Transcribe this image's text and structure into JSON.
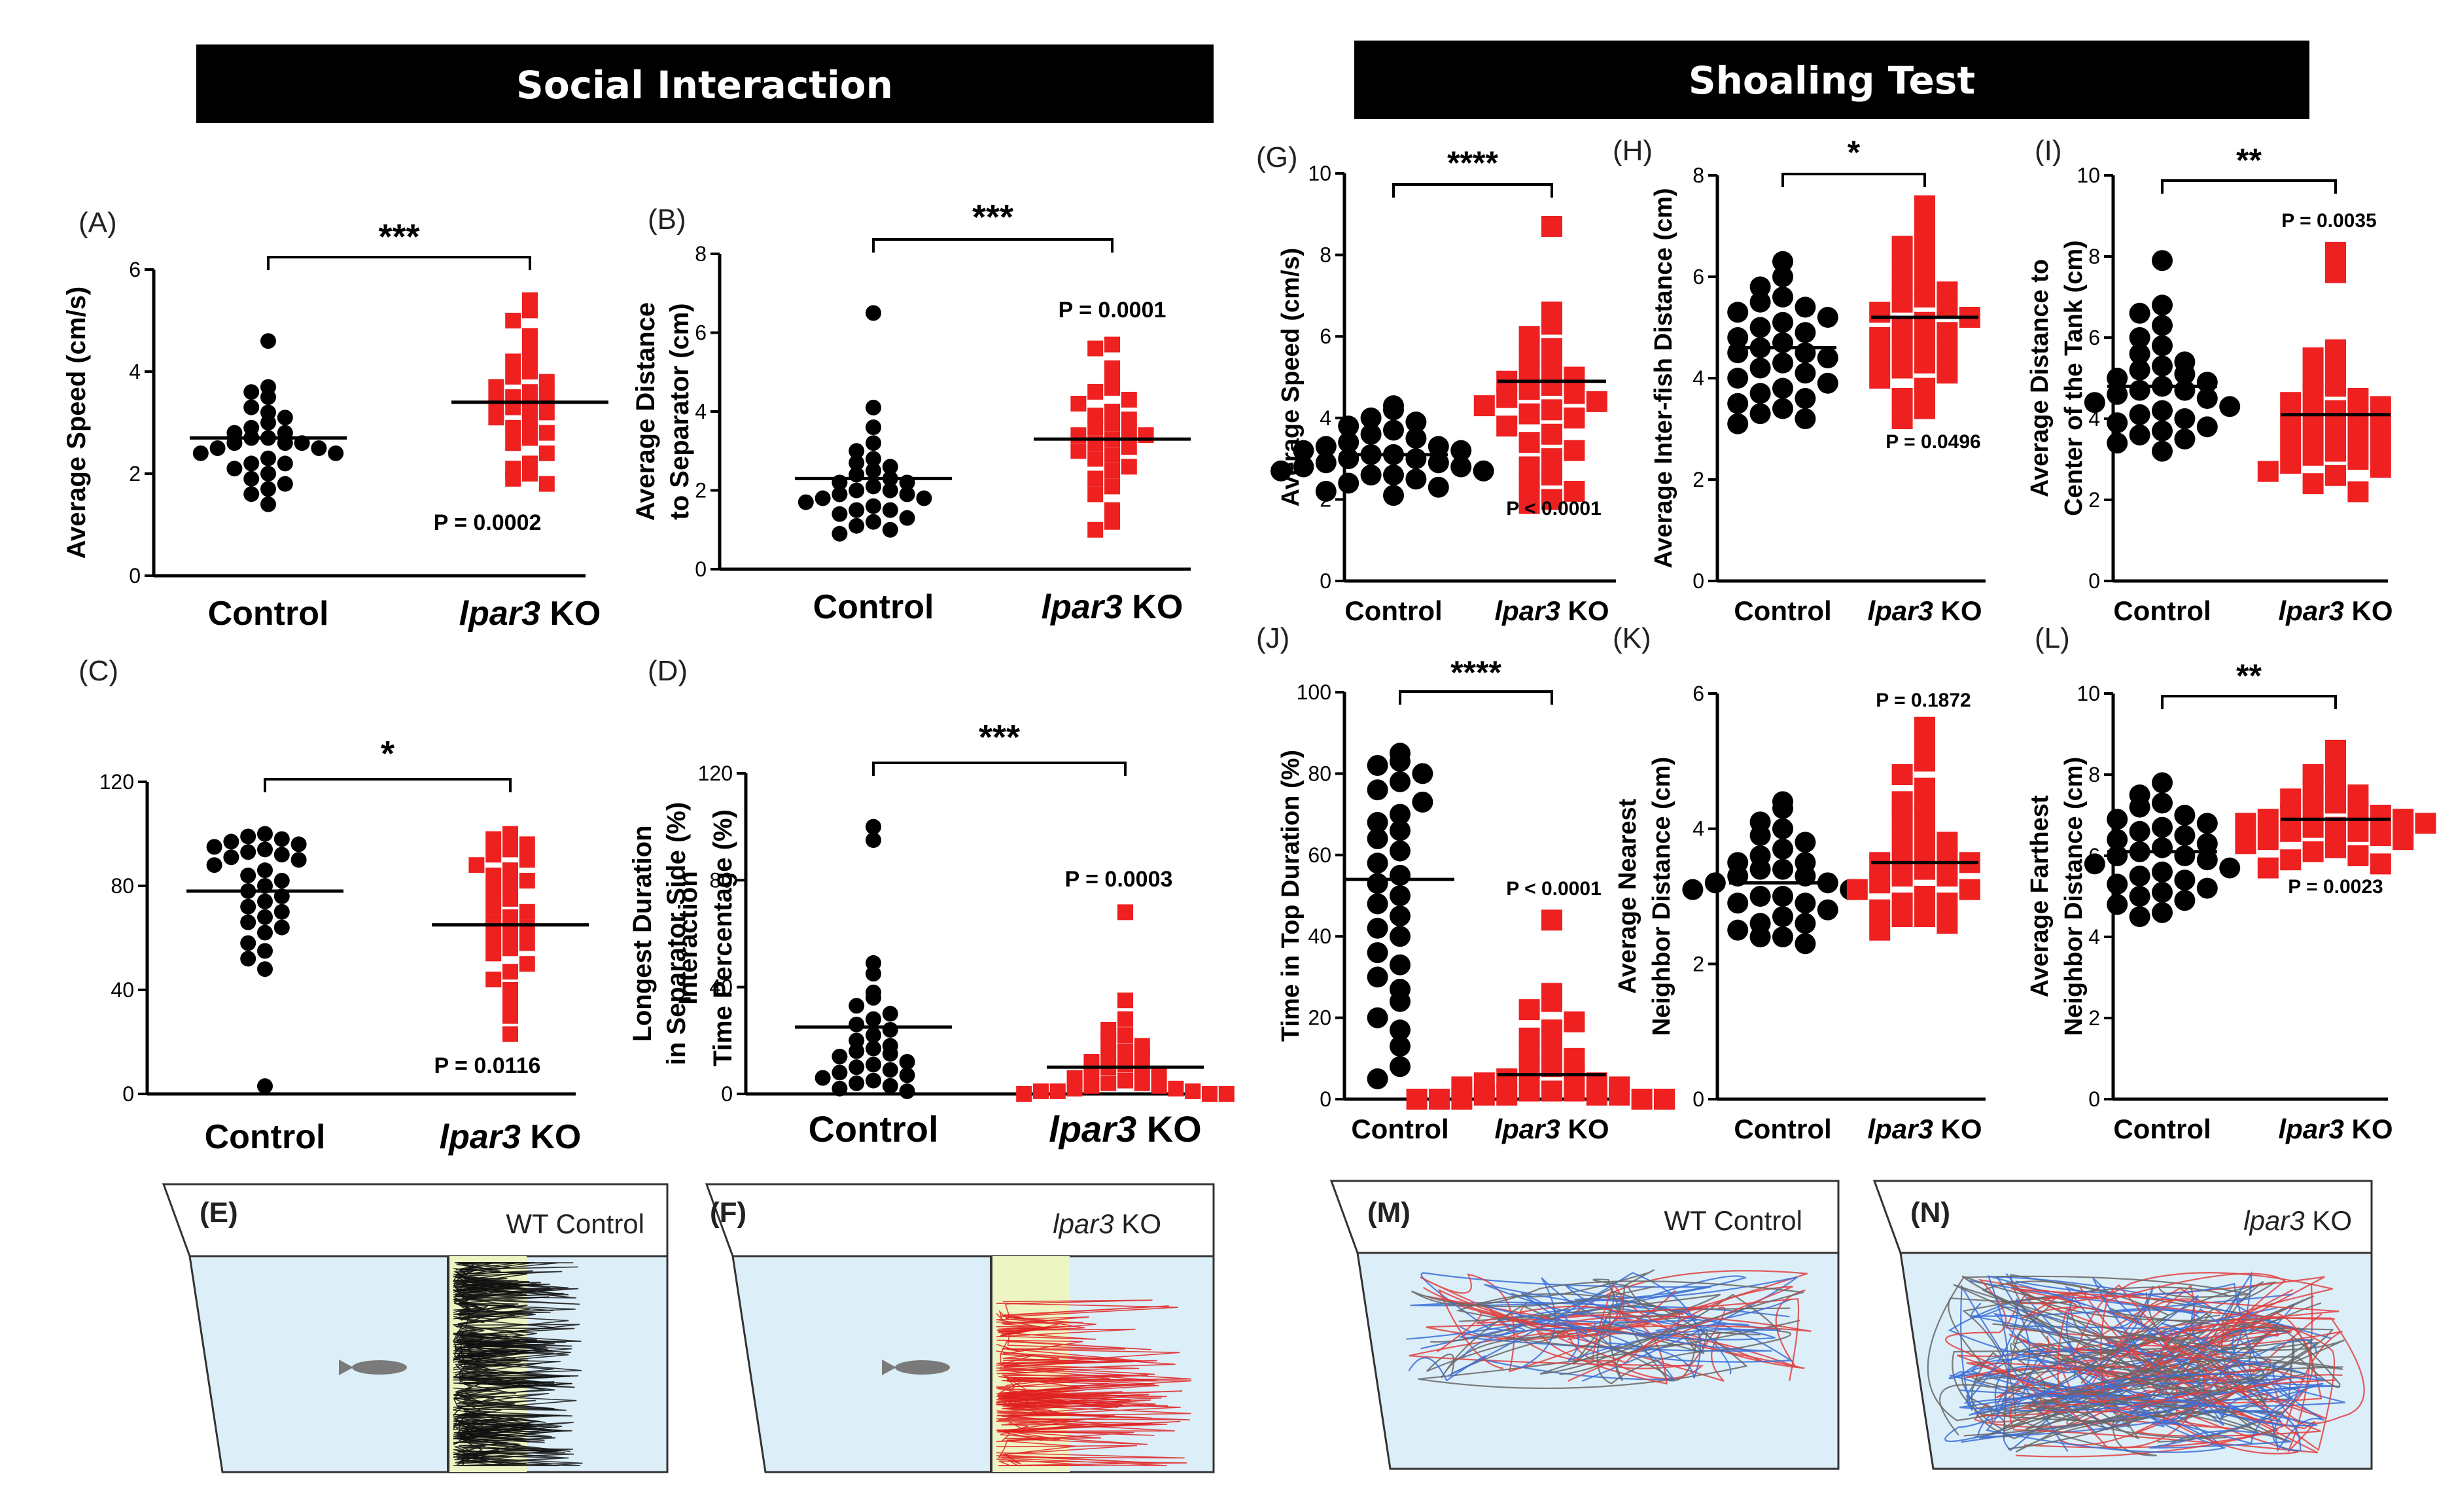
{
  "headers": {
    "left": "Social Interaction",
    "right": "Shoaling Test"
  },
  "colors": {
    "control": "#000000",
    "ko": "#ee2020",
    "water": "#dceef8",
    "zone": "#eef5c4",
    "header_bg": "#000000"
  },
  "chart_data": [
    {
      "id": "A",
      "type": "scatter",
      "tag": "(A)",
      "ylabel_lines": [
        "Average Speed (cm/s)"
      ],
      "ylim": [
        0,
        6
      ],
      "yticks": [
        "0",
        "2",
        "4",
        "6"
      ],
      "categories": [
        "Control",
        "Ipar3 KO"
      ],
      "ko_label": {
        "italic": "lpar3",
        "rest": " KO"
      },
      "significance": "***",
      "p_value": "P = 0.0002",
      "means": [
        2.7,
        3.4
      ],
      "series": [
        {
          "name": "Control",
          "values": [
            4.6,
            3.7,
            3.5,
            3.6,
            3.2,
            3.3,
            3.1,
            3.0,
            2.9,
            2.8,
            2.8,
            2.7,
            2.7,
            2.6,
            2.6,
            2.6,
            2.5,
            2.5,
            2.4,
            2.4,
            2.3,
            2.2,
            2.2,
            2.1,
            2.0,
            1.9,
            1.8,
            1.7,
            1.6,
            1.4
          ]
        },
        {
          "name": "Ipar3 KO",
          "values": [
            5.4,
            5.2,
            5.0,
            4.7,
            4.5,
            4.3,
            4.2,
            4.0,
            3.9,
            3.8,
            3.7,
            3.6,
            3.5,
            3.5,
            3.4,
            3.3,
            3.3,
            3.2,
            3.1,
            3.0,
            2.9,
            2.8,
            2.7,
            2.6,
            2.4,
            2.2,
            2.1,
            2.0,
            1.9,
            1.8
          ]
        }
      ]
    },
    {
      "id": "B",
      "type": "scatter",
      "tag": "(B)",
      "ylabel_lines": [
        "Average Distance",
        "to Separator (cm)"
      ],
      "ylim": [
        0,
        8
      ],
      "yticks": [
        "0",
        "2",
        "4",
        "6",
        "8"
      ],
      "categories": [
        "Control",
        "Ipar3 KO"
      ],
      "ko_label": {
        "italic": "lpar3",
        "rest": " KO"
      },
      "significance": "***",
      "p_value": "P = 0.0001",
      "means": [
        2.3,
        3.3
      ],
      "series": [
        {
          "name": "Control",
          "values": [
            6.5,
            4.1,
            3.6,
            3.2,
            3.0,
            2.8,
            2.7,
            2.6,
            2.5,
            2.4,
            2.3,
            2.2,
            2.2,
            2.1,
            2.0,
            2.0,
            1.9,
            1.9,
            1.8,
            1.8,
            1.7,
            1.6,
            1.5,
            1.5,
            1.4,
            1.3,
            1.2,
            1.1,
            1.0,
            0.9
          ]
        },
        {
          "name": "Ipar3 KO",
          "values": [
            5.7,
            5.6,
            5.1,
            4.9,
            4.6,
            4.5,
            4.3,
            4.2,
            4.0,
            3.9,
            3.8,
            3.7,
            3.6,
            3.5,
            3.4,
            3.4,
            3.3,
            3.2,
            3.1,
            3.0,
            2.9,
            2.8,
            2.6,
            2.5,
            2.3,
            2.1,
            1.9,
            1.5,
            1.2,
            1.0
          ]
        }
      ]
    },
    {
      "id": "C",
      "type": "scatter",
      "tag": "(C)",
      "ylabel_lines": [
        "Interaction",
        "Time Percentage (%)"
      ],
      "ylim": [
        0,
        120
      ],
      "yticks": [
        "0",
        "40",
        "80",
        "120"
      ],
      "categories": [
        "Control",
        "Ipar3 KO"
      ],
      "ko_label": {
        "italic": "lpar3",
        "rest": " KO"
      },
      "significance": "*",
      "p_value": "P = 0.0116",
      "means": [
        78,
        65
      ],
      "series": [
        {
          "name": "Control",
          "values": [
            100,
            99,
            98,
            97,
            96,
            95,
            94,
            93,
            92,
            91,
            90,
            88,
            86,
            84,
            82,
            80,
            78,
            76,
            74,
            72,
            70,
            68,
            66,
            64,
            62,
            58,
            55,
            52,
            48,
            3
          ]
        },
        {
          "name": "Ipar3 KO",
          "values": [
            100,
            98,
            96,
            94,
            92,
            90,
            88,
            86,
            84,
            82,
            80,
            78,
            75,
            72,
            70,
            68,
            66,
            64,
            62,
            60,
            58,
            56,
            54,
            50,
            47,
            44,
            40,
            36,
            30,
            23
          ]
        }
      ]
    },
    {
      "id": "D",
      "type": "scatter",
      "tag": "(D)",
      "ylabel_lines": [
        "Longest  Duration",
        "in Separator Side (%)"
      ],
      "ylim": [
        0,
        120
      ],
      "yticks": [
        "0",
        "40",
        "80",
        "120"
      ],
      "categories": [
        "Control",
        "Ipar3 KO"
      ],
      "ko_label": {
        "italic": "lpar3",
        "rest": " KO"
      },
      "significance": "***",
      "p_value": "P = 0.0003",
      "means": [
        25,
        10
      ],
      "series": [
        {
          "name": "Control",
          "values": [
            100,
            95,
            49,
            45,
            38,
            36,
            33,
            30,
            28,
            26,
            24,
            22,
            20,
            18,
            17,
            16,
            15,
            14,
            12,
            11,
            10,
            9,
            8,
            7,
            6,
            5,
            4,
            3,
            2,
            1
          ]
        },
        {
          "name": "Ipar3 KO",
          "values": [
            68,
            35,
            28,
            24,
            22,
            20,
            18,
            16,
            15,
            14,
            12,
            11,
            10,
            9,
            8,
            7,
            6,
            5,
            4,
            4,
            3,
            3,
            2,
            2,
            1,
            1,
            1,
            0,
            0,
            0
          ]
        }
      ]
    },
    {
      "id": "G",
      "type": "scatter",
      "tag": "(G)",
      "ylabel_lines": [
        "Average Speed (cm/s)"
      ],
      "ylim": [
        0,
        10
      ],
      "yticks": [
        "0",
        "2",
        "4",
        "6",
        "8",
        "10"
      ],
      "categories": [
        "Control",
        "Ipar3 KO"
      ],
      "ko_label": {
        "italic": "lpar3",
        "rest": " KO"
      },
      "significance": "****",
      "p_value": "P < 0.0001",
      "means": [
        3.1,
        4.9
      ],
      "series": [
        {
          "name": "Control",
          "values": [
            4.3,
            4.2,
            4.0,
            3.9,
            3.8,
            3.7,
            3.6,
            3.5,
            3.4,
            3.3,
            3.3,
            3.2,
            3.2,
            3.1,
            3.1,
            3.0,
            3.0,
            2.9,
            2.9,
            2.8,
            2.8,
            2.7,
            2.7,
            2.6,
            2.6,
            2.5,
            2.4,
            2.3,
            2.2,
            2.1
          ]
        },
        {
          "name": "Ipar3 KO",
          "values": [
            8.7,
            6.6,
            6.3,
            6.0,
            5.7,
            5.5,
            5.3,
            5.1,
            5.0,
            4.9,
            4.8,
            4.7,
            4.6,
            4.5,
            4.4,
            4.3,
            4.2,
            4.1,
            4.0,
            3.8,
            3.6,
            3.4,
            3.2,
            3.0,
            2.8,
            2.6,
            2.4,
            2.2,
            2.0,
            1.9
          ]
        }
      ]
    },
    {
      "id": "H",
      "type": "scatter",
      "tag": "(H)",
      "ylabel_lines": [
        "Average Inter-fish Distance (cm)"
      ],
      "ylim": [
        0,
        8
      ],
      "yticks": [
        "0",
        "2",
        "4",
        "6",
        "8"
      ],
      "categories": [
        "Control",
        "Ipar3 KO"
      ],
      "ko_label": {
        "italic": "lpar3",
        "rest": " KO"
      },
      "significance": "*",
      "p_value": "P = 0.0496",
      "means": [
        4.6,
        5.2
      ],
      "series": [
        {
          "name": "Control",
          "values": [
            6.3,
            6.0,
            5.8,
            5.6,
            5.5,
            5.4,
            5.3,
            5.2,
            5.1,
            5.0,
            4.9,
            4.8,
            4.7,
            4.6,
            4.5,
            4.5,
            4.4,
            4.3,
            4.2,
            4.1,
            4.0,
            3.9,
            3.8,
            3.7,
            3.6,
            3.5,
            3.4,
            3.3,
            3.2,
            3.1
          ]
        },
        {
          "name": "Ipar3 KO",
          "values": [
            7.4,
            7.1,
            6.8,
            6.6,
            6.4,
            6.2,
            6.0,
            5.8,
            5.7,
            5.6,
            5.5,
            5.4,
            5.3,
            5.2,
            5.1,
            5.0,
            4.9,
            4.8,
            4.7,
            4.6,
            4.5,
            4.4,
            4.3,
            4.2,
            4.1,
            4.0,
            3.8,
            3.6,
            3.4,
            3.2
          ]
        }
      ]
    },
    {
      "id": "I",
      "type": "scatter",
      "tag": "(I)",
      "ylabel_lines": [
        "Average Distance to",
        "Center of the Tank (cm)"
      ],
      "ylim": [
        0,
        10
      ],
      "yticks": [
        "0",
        "2",
        "4",
        "6",
        "8",
        "10"
      ],
      "categories": [
        "Control",
        "Ipar3 KO"
      ],
      "ko_label": {
        "italic": "lpar3",
        "rest": " KO"
      },
      "significance": "**",
      "p_value": "P = 0.0035",
      "means": [
        4.8,
        4.1
      ],
      "series": [
        {
          "name": "Control",
          "values": [
            7.9,
            6.8,
            6.6,
            6.3,
            6.0,
            5.8,
            5.6,
            5.4,
            5.3,
            5.2,
            5.1,
            5.0,
            4.9,
            4.8,
            4.7,
            4.7,
            4.6,
            4.5,
            4.4,
            4.3,
            4.2,
            4.1,
            4.0,
            3.9,
            3.8,
            3.7,
            3.6,
            3.5,
            3.4,
            3.2
          ]
        },
        {
          "name": "Ipar3 KO",
          "values": [
            8.1,
            7.6,
            5.7,
            5.5,
            5.3,
            5.0,
            4.8,
            4.6,
            4.5,
            4.4,
            4.3,
            4.2,
            4.1,
            4.0,
            3.9,
            3.8,
            3.7,
            3.6,
            3.5,
            3.4,
            3.3,
            3.2,
            3.1,
            3.0,
            2.9,
            2.8,
            2.7,
            2.6,
            2.4,
            2.2
          ]
        }
      ]
    },
    {
      "id": "J",
      "type": "scatter",
      "tag": "(J)",
      "ylabel_lines": [
        "Time in Top Duration (%)"
      ],
      "ylim": [
        0,
        100
      ],
      "yticks": [
        "0",
        "20",
        "40",
        "60",
        "80",
        "100"
      ],
      "categories": [
        "Control",
        "Ipar3 KO"
      ],
      "ko_label": {
        "italic": "lpar3",
        "rest": " KO"
      },
      "significance": "****",
      "p_value": "P < 0.0001",
      "means": [
        54,
        6
      ],
      "series": [
        {
          "name": "Control",
          "values": [
            85,
            83,
            82,
            80,
            78,
            76,
            73,
            70,
            68,
            66,
            64,
            61,
            58,
            55,
            53,
            50,
            48,
            45,
            42,
            40,
            36,
            33,
            30,
            27,
            24,
            20,
            17,
            13,
            8,
            5
          ]
        },
        {
          "name": "Ipar3 KO",
          "values": [
            44,
            26,
            24,
            22,
            19,
            17,
            15,
            13,
            11,
            10,
            8,
            7,
            6,
            5,
            4,
            4,
            3,
            3,
            2,
            2,
            2,
            1,
            1,
            1,
            1,
            0,
            0,
            0,
            0,
            0
          ]
        }
      ]
    },
    {
      "id": "K",
      "type": "scatter",
      "tag": "(K)",
      "ylabel_lines": [
        "Average Nearest",
        "Neighbor Distance (cm)"
      ],
      "ylim": [
        0,
        6
      ],
      "yticks": [
        "0",
        "2",
        "4",
        "6"
      ],
      "categories": [
        "Control",
        "Ipar3 KO"
      ],
      "ko_label": {
        "italic": "lpar3",
        "rest": " KO"
      },
      "significance": "",
      "p_value": "P = 0.1872",
      "means": [
        3.2,
        3.5
      ],
      "series": [
        {
          "name": "Control",
          "values": [
            4.4,
            4.3,
            4.1,
            4.0,
            3.9,
            3.8,
            3.7,
            3.6,
            3.5,
            3.5,
            3.4,
            3.4,
            3.3,
            3.3,
            3.2,
            3.2,
            3.1,
            3.1,
            3.0,
            3.0,
            2.9,
            2.9,
            2.8,
            2.7,
            2.6,
            2.6,
            2.5,
            2.4,
            2.4,
            2.3
          ]
        },
        {
          "name": "Ipar3 KO",
          "values": [
            5.5,
            5.3,
            5.0,
            4.8,
            4.6,
            4.4,
            4.3,
            4.2,
            4.0,
            3.9,
            3.8,
            3.7,
            3.6,
            3.6,
            3.5,
            3.5,
            3.4,
            3.3,
            3.3,
            3.2,
            3.1,
            3.1,
            3.0,
            2.9,
            2.9,
            2.8,
            2.7,
            2.7,
            2.6,
            2.5
          ]
        }
      ]
    },
    {
      "id": "L",
      "type": "scatter",
      "tag": "(L)",
      "ylabel_lines": [
        "Average Farthest",
        "Neighbor Distance (cm)"
      ],
      "ylim": [
        0,
        10
      ],
      "yticks": [
        "0",
        "2",
        "4",
        "6",
        "8",
        "10"
      ],
      "categories": [
        "Control",
        "Ipar3 KO"
      ],
      "ko_label": {
        "italic": "lpar3",
        "rest": " KO"
      },
      "significance": "**",
      "p_value": "P = 0.0023",
      "means": [
        6.1,
        6.9
      ],
      "series": [
        {
          "name": "Control",
          "values": [
            7.8,
            7.5,
            7.3,
            7.2,
            7.0,
            6.9,
            6.8,
            6.7,
            6.6,
            6.5,
            6.4,
            6.3,
            6.2,
            6.1,
            6.0,
            6.0,
            5.9,
            5.8,
            5.7,
            5.6,
            5.5,
            5.4,
            5.3,
            5.2,
            5.1,
            5.0,
            4.9,
            4.8,
            4.6,
            4.5
          ]
        },
        {
          "name": "Ipar3 KO",
          "values": [
            8.6,
            8.3,
            8.0,
            7.8,
            7.6,
            7.5,
            7.4,
            7.3,
            7.2,
            7.1,
            7.0,
            7.0,
            6.9,
            6.9,
            6.8,
            6.8,
            6.7,
            6.7,
            6.6,
            6.6,
            6.5,
            6.4,
            6.4,
            6.3,
            6.2,
            6.1,
            6.0,
            5.9,
            5.8,
            5.7
          ]
        }
      ]
    }
  ],
  "tanks": [
    {
      "id": "E",
      "tag": "(E)",
      "label": "WT Control",
      "label_italic": "",
      "label_rest": "WT Control",
      "type": "social",
      "trace": "black"
    },
    {
      "id": "F",
      "tag": "(F)",
      "label": "lpar3 KO",
      "label_italic": "lpar3",
      "label_rest": " KO",
      "type": "social",
      "trace": "red"
    },
    {
      "id": "M",
      "tag": "(M)",
      "label": "WT Control",
      "label_italic": "",
      "label_rest": "WT Control",
      "type": "shoal",
      "trace": "mixed-sparse"
    },
    {
      "id": "N",
      "tag": "(N)",
      "label": "lpar3 KO",
      "label_italic": "lpar3",
      "label_rest": " KO",
      "type": "shoal",
      "trace": "mixed-dense"
    }
  ]
}
